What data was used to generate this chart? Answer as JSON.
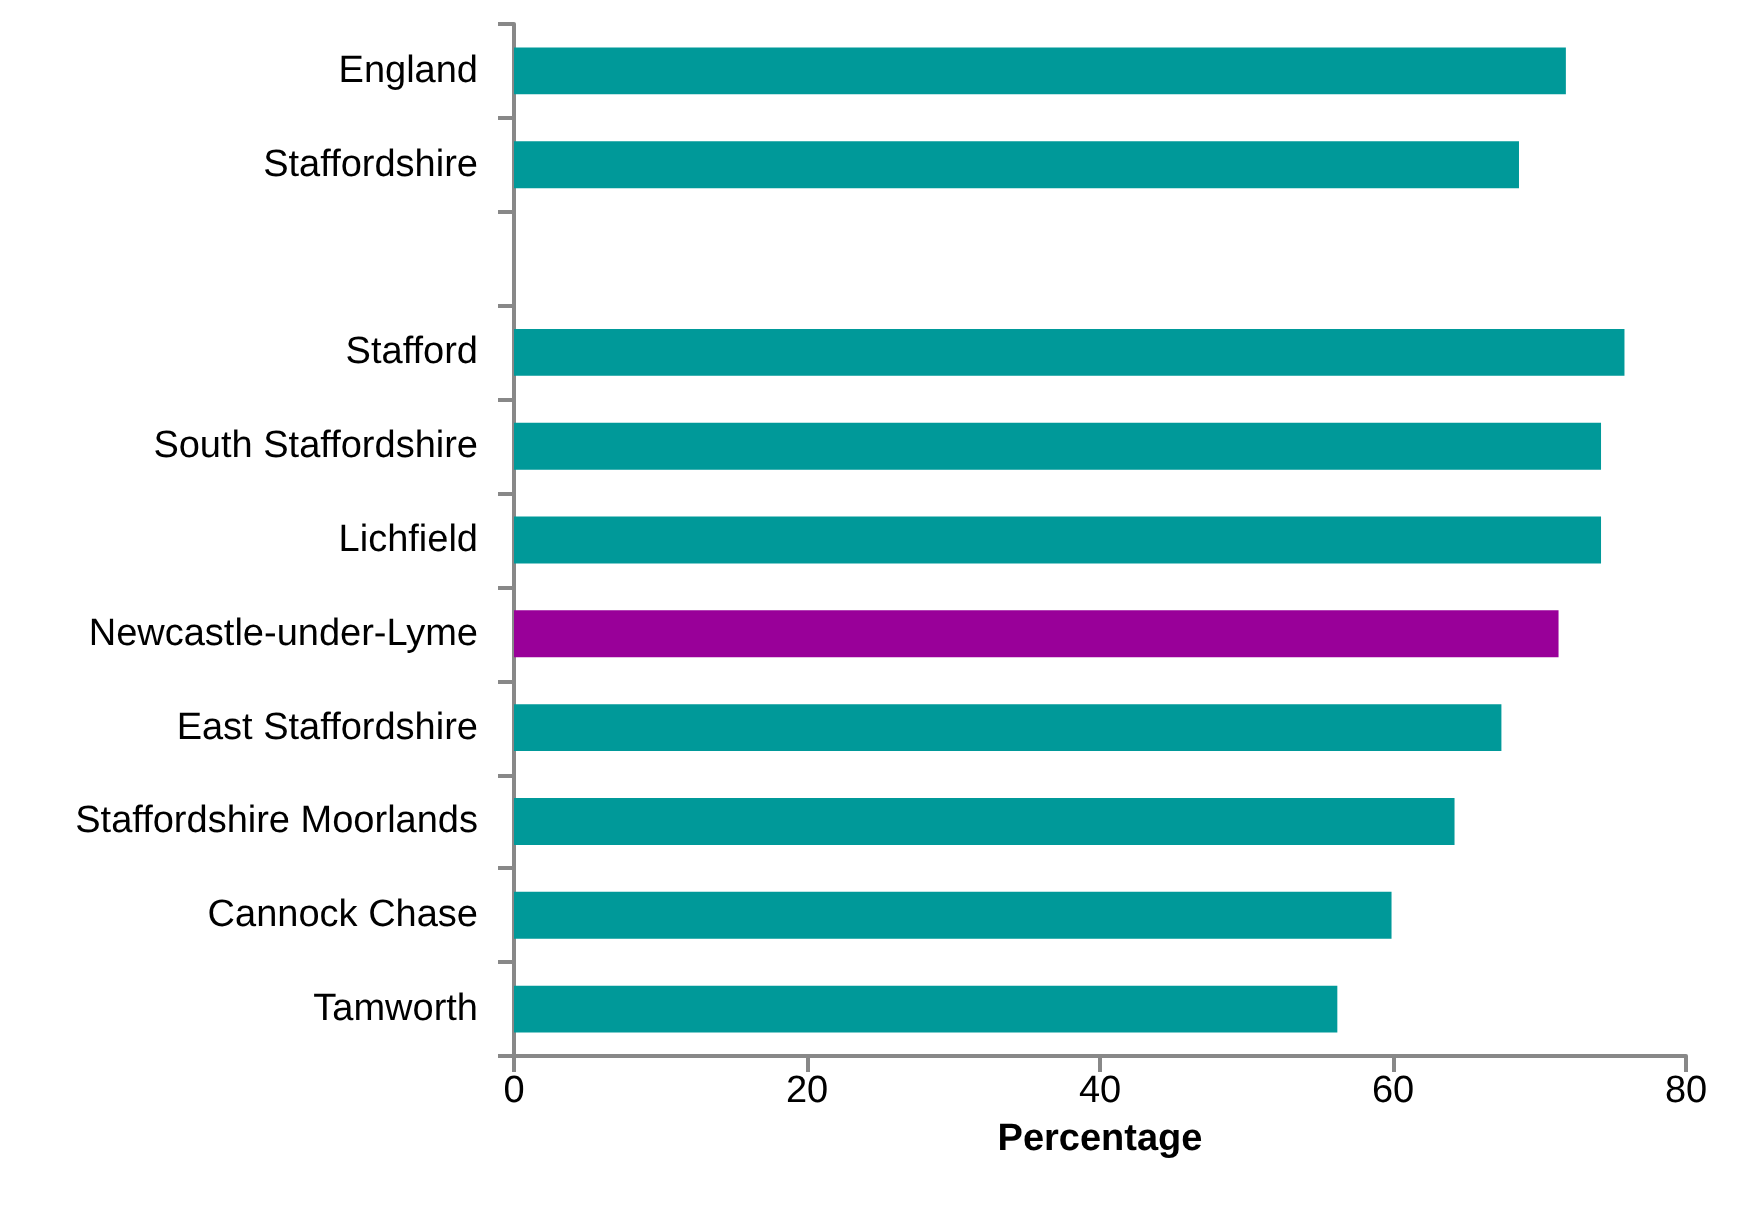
{
  "chart_data": {
    "type": "bar",
    "orientation": "horizontal",
    "xlabel": "Percentage",
    "categories": [
      "England",
      "Staffordshire",
      null,
      "Stafford",
      "South Staffordshire",
      "Lichfield",
      "Newcastle-under-Lyme",
      "East Staffordshire",
      "Staffordshire Moorlands",
      "Cannock Chase",
      "Tamworth"
    ],
    "values": [
      71.8,
      68.6,
      null,
      75.8,
      74.2,
      74.2,
      71.3,
      67.4,
      64.2,
      59.9,
      56.2
    ],
    "colors": [
      "#009999",
      "#009999",
      "#009999",
      "#009999",
      "#009999",
      "#009999",
      "#990099",
      "#009999",
      "#009999",
      "#009999",
      "#009999"
    ],
    "xlim": [
      0,
      80
    ],
    "xticks": [
      0,
      20,
      40,
      60,
      80
    ],
    "grid": false
  }
}
